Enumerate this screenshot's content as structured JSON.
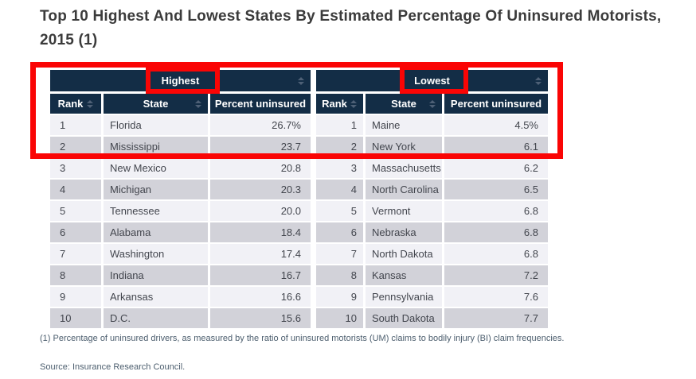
{
  "page": {
    "title": "Top 10 Highest And Lowest States By Estimated Percentage Of Uninsured Motorists, 2015 (1)",
    "footnote": "(1) Percentage of uninsured drivers, as measured by the ratio of uninsured motorists (UM) claims to bodily injury (BI) claim frequencies.",
    "source": "Source: Insurance Research Council."
  },
  "chart_data": {
    "type": "table",
    "title": "Top 10 Highest And Lowest States By Estimated Percentage Of Uninsured Motorists, 2015 (1)",
    "tables": [
      {
        "group": "Highest",
        "columns": [
          "Rank",
          "State",
          "Percent uninsured"
        ],
        "rows": [
          [
            "1",
            "Florida",
            "26.7%"
          ],
          [
            "2",
            "Mississippi",
            "23.7"
          ],
          [
            "3",
            "New Mexico",
            "20.8"
          ],
          [
            "4",
            "Michigan",
            "20.3"
          ],
          [
            "5",
            "Tennessee",
            "20.0"
          ],
          [
            "6",
            "Alabama",
            "18.4"
          ],
          [
            "7",
            "Washington",
            "17.4"
          ],
          [
            "8",
            "Indiana",
            "16.7"
          ],
          [
            "9",
            "Arkansas",
            "16.6"
          ],
          [
            "10",
            "D.C.",
            "15.6"
          ]
        ]
      },
      {
        "group": "Lowest",
        "columns": [
          "Rank",
          "State",
          "Percent uninsured"
        ],
        "rows": [
          [
            "1",
            "Maine",
            "4.5%"
          ],
          [
            "2",
            "New York",
            "6.1"
          ],
          [
            "3",
            "Massachusetts",
            "6.2"
          ],
          [
            "4",
            "North Carolina",
            "6.5"
          ],
          [
            "5",
            "Vermont",
            "6.8"
          ],
          [
            "6",
            "Nebraska",
            "6.8"
          ],
          [
            "7",
            "North Dakota",
            "6.8"
          ],
          [
            "8",
            "Kansas",
            "7.2"
          ],
          [
            "9",
            "Pennsylvania",
            "7.6"
          ],
          [
            "10",
            "South Dakota",
            "7.7"
          ]
        ]
      }
    ]
  },
  "annotations": {
    "boxes": [
      "table-top-rows-region",
      "highest-group-header",
      "lowest-group-header"
    ]
  },
  "icons": {
    "sort": "sort-arrows"
  },
  "colors": {
    "header_bg": "#132d46",
    "row_light": "#f1f1f6",
    "row_dark": "#d2d2d9",
    "annotation_red": "#fa0505",
    "title_text": "#3b3b3b",
    "cell_text": "#43464e",
    "note_text": "#4c5e6e"
  }
}
